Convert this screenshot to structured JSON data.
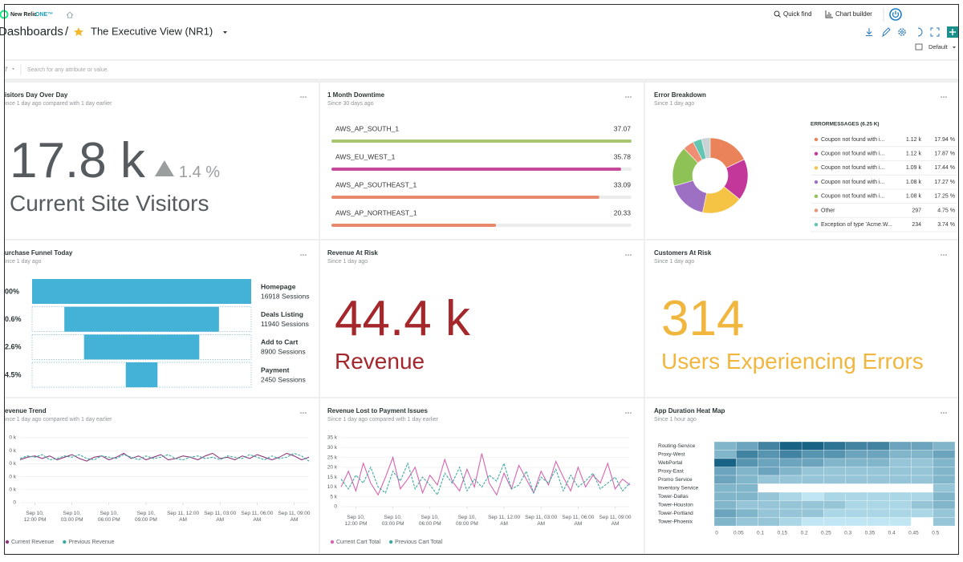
{
  "header": {
    "brand": "New Relic",
    "brand_suffix": "ONE™",
    "quick_find": "Quick find",
    "chart_builder": "Chart builder",
    "breadcrumb": "Dashboards",
    "separator": "/",
    "title": "The Executive View (NR1)",
    "time_picker": "Default"
  },
  "filter": {
    "placeholder": "Search for any attribute or value."
  },
  "panels": [
    {
      "type": "billboard",
      "title": "isitors Day Over Day",
      "subtitle": "ince 1 day ago compared with 1 day earlier",
      "value": "17.8 k",
      "change": "1.4 %",
      "label": "Current Site Visitors",
      "color": "#555b5e"
    },
    {
      "title": "1 Month Downtime",
      "subtitle": "Since 30 days ago",
      "chart": {
        "type": "bar",
        "categories": [
          "AWS_AP_SOUTH_1",
          "AWS_EU_WEST_1",
          "AWS_AP_SOUTHEAST_1",
          "AWS_AP_NORTHEAST_1"
        ],
        "values": [
          37.07,
          35.78,
          33.09,
          20.33
        ],
        "colors": [
          "#a9c66f",
          "#c5489c",
          "#e8896b",
          "#e8896b"
        ]
      }
    },
    {
      "title": "Error Breakdown",
      "subtitle": "Since 1 day ago",
      "chart": {
        "type": "pie",
        "legend_title": "ERRORMESSAGES (6.25 K)",
        "categories": [
          "Coupon not found with i...",
          "Coupon not found with i...",
          "Coupon not found with i...",
          "Coupon not found with i...",
          "Coupon not found with i...",
          "Other",
          "Exception of type 'Acme.W..."
        ],
        "count_labels": [
          "1.12 k",
          "1.12 k",
          "1.09 k",
          "1.08 k",
          "1.08 k",
          "297",
          "234"
        ],
        "values": [
          17.94,
          17.87,
          17.44,
          17.27,
          17.25,
          4.75,
          3.74
        ],
        "value_labels": [
          "17.94 %",
          "17.87 %",
          "17.44 %",
          "17.27 %",
          "17.25 %",
          "4.75 %",
          "3.74 %"
        ],
        "colors": [
          "#ea8359",
          "#c4379a",
          "#f6c445",
          "#9d70c4",
          "#8fc256",
          "#ef8e72",
          "#62c6b3"
        ]
      }
    },
    {
      "title": "urchase Funnel Today",
      "subtitle": "ince 1 day ago",
      "chart": {
        "type": "funnel",
        "categories": [
          "Homepage",
          "Deals Listing",
          "Add to Cart",
          "Payment"
        ],
        "values": [
          16918,
          11940,
          8900,
          2450
        ],
        "value_labels": [
          "16918 Sessions",
          "11940 Sessions",
          "8900 Sessions",
          "2450 Sessions"
        ],
        "percent_labels": [
          "00%",
          "0.6%",
          "2.6%",
          "4.5%"
        ],
        "color": "#44b2d7"
      }
    },
    {
      "type": "billboard",
      "title": "Revenue At Risk",
      "subtitle": "Since 1 day ago",
      "value": "44.4 k",
      "label": "Revenue",
      "color": "#a3272b"
    },
    {
      "type": "billboard",
      "title": "Customers At Risk",
      "subtitle": "Since 1 day ago",
      "value": "314",
      "label": "Users Experiencing Errors",
      "color": "#f0b63d"
    },
    {
      "title": "evenue Trend",
      "subtitle": "ince 1 day ago compared with 1 day earlier",
      "chart": {
        "type": "line",
        "categories": [
          null,
          null,
          "Sep 10, 12:00 PM",
          null,
          null,
          null,
          null,
          "Sep 10, 03:00 PM",
          null,
          null,
          null,
          null,
          "Sep 10, 06:00 PM",
          null,
          null,
          null,
          null,
          "Sep 10, 09:00 PM",
          null,
          null,
          null,
          null,
          "Sep 11, 12:00 AM",
          null,
          null,
          null,
          null,
          "Sep 11, 03:00 AM",
          null,
          null,
          null,
          null,
          "Sep 11, 06:00 AM",
          null,
          null,
          null,
          null,
          "Sep 11, 09:00 AM",
          null,
          null
        ],
        "ylim": [
          0,
          50
        ],
        "yticks": [
          0,
          {
            "value": 10,
            "label": "0 k"
          },
          {
            "value": 20,
            "label": "0 k"
          },
          {
            "value": 30,
            "label": "0 k"
          },
          {
            "value": 40,
            "label": "0 k"
          },
          {
            "value": 50,
            "label": "0 k"
          }
        ],
        "grid": true,
        "series": [
          {
            "name": "Current Revenue",
            "color": "#8b3a7e",
            "values": [
              33,
              35,
              36,
              34,
              36,
              33,
              35,
              37,
              34,
              32,
              35,
              36,
              33,
              35,
              38,
              34,
              36,
              33,
              35,
              37,
              33,
              34,
              36,
              35,
              33,
              36,
              38,
              34,
              35,
              33,
              36,
              34,
              37,
              35,
              33,
              35,
              38,
              36,
              33,
              35
            ]
          },
          {
            "name": "Previous Revenue",
            "color": "#3fa9a0",
            "style": "dashed",
            "values": [
              34,
              36,
              35,
              37,
              33,
              34,
              36,
              35,
              37,
              34,
              33,
              36,
              35,
              34,
              37,
              35,
              33,
              36,
              34,
              35,
              37,
              34,
              33,
              35,
              36,
              34,
              35,
              33,
              36,
              35,
              34,
              37,
              35,
              33,
              36,
              34,
              35,
              38,
              36,
              32
            ]
          }
        ]
      }
    },
    {
      "title": "Revenue Lost to Payment Issues",
      "subtitle": "Since 1 day ago compared with 1 day earlier",
      "chart": {
        "type": "line",
        "categories": [
          null,
          null,
          "Sep 10, 12:00 PM",
          null,
          null,
          null,
          null,
          "Sep 10, 03:00 PM",
          null,
          null,
          null,
          null,
          "Sep 10, 06:00 PM",
          null,
          null,
          null,
          null,
          "Sep 10, 09:00 PM",
          null,
          null,
          null,
          null,
          "Sep 11, 12:00 AM",
          null,
          null,
          null,
          null,
          "Sep 11, 03:00 AM",
          null,
          null,
          null,
          null,
          "Sep 11, 06:00 AM",
          null,
          null,
          null,
          null,
          "Sep 11, 09:00 AM",
          null,
          null
        ],
        "ylim": [
          0,
          35
        ],
        "yticks": [
          0,
          {
            "value": 5,
            "label": "5 k"
          },
          {
            "value": 10,
            "label": "10 k"
          },
          {
            "value": 15,
            "label": "15 k"
          },
          {
            "value": 20,
            "label": "20 k"
          },
          {
            "value": 25,
            "label": "25 k"
          },
          {
            "value": 30,
            "label": "30 k"
          },
          {
            "value": 35,
            "label": "35 k"
          }
        ],
        "grid": true,
        "series": [
          {
            "name": "Current Cart Total",
            "color": "#d564b0",
            "values": [
              10,
              18,
              8,
              22,
              12,
              6,
              15,
              25,
              9,
              14,
              20,
              7,
              16,
              11,
              24,
              13,
              8,
              19,
              10,
              27,
              12,
              6,
              17,
              9,
              21,
              14,
              7,
              18,
              11,
              23,
              15,
              8,
              20,
              10,
              16,
              12,
              22,
              9,
              14,
              11
            ]
          },
          {
            "name": "Previous Cart Total",
            "color": "#3fa9a0",
            "style": "dashed",
            "values": [
              14,
              9,
              16,
              12,
              20,
              10,
              7,
              18,
              13,
              22,
              9,
              15,
              11,
              6,
              17,
              12,
              20,
              8,
              14,
              10,
              16,
              13,
              22,
              9,
              11,
              18,
              7,
              15,
              12,
              19,
              8,
              16,
              10,
              13,
              17,
              9,
              12,
              15,
              8,
              12
            ]
          }
        ]
      }
    },
    {
      "title": "App Duration Heat Map",
      "subtitle": "Since 1 hour ago",
      "chart": {
        "type": "heatmap",
        "rows": [
          "Routing-Service",
          "Proxy-West",
          "WebPortal",
          "Proxy-East",
          "Promo Service",
          "Inventory Service",
          "Tower-Dallas",
          "Tower-Houston",
          "Tower-Portland",
          "Tower-Phoenix"
        ],
        "values": [
          [
            4,
            5,
            7,
            9,
            9,
            8,
            7,
            7,
            5,
            5,
            4
          ],
          [
            4,
            7,
            6,
            7,
            6,
            6,
            5,
            5,
            4,
            4,
            5
          ],
          [
            9,
            6,
            5,
            5,
            5,
            4,
            4,
            4,
            3,
            3,
            4
          ],
          [
            5,
            4,
            5,
            4,
            3,
            3,
            3,
            3,
            3,
            3,
            4
          ],
          [
            5,
            4,
            3,
            3,
            3,
            3,
            3,
            3,
            3,
            3,
            4
          ],
          [
            4,
            4,
            0,
            0,
            0,
            0,
            0,
            0,
            0,
            0,
            3
          ],
          [
            4,
            4,
            3,
            2,
            1,
            2,
            2,
            2,
            2,
            2,
            4
          ],
          [
            4,
            3,
            3,
            3,
            3,
            3,
            2,
            2,
            2,
            3,
            4
          ],
          [
            5,
            4,
            3,
            3,
            3,
            2,
            2,
            2,
            2,
            2,
            3
          ],
          [
            4,
            3,
            3,
            2,
            1,
            1,
            1,
            1,
            1,
            0,
            3
          ]
        ],
        "xlim": [
          0,
          0.55
        ],
        "xticks": [
          0,
          0.05,
          0.1,
          0.15,
          0.2,
          0.25,
          0.3,
          0.35,
          0.4,
          0.45,
          0.5
        ]
      }
    }
  ]
}
